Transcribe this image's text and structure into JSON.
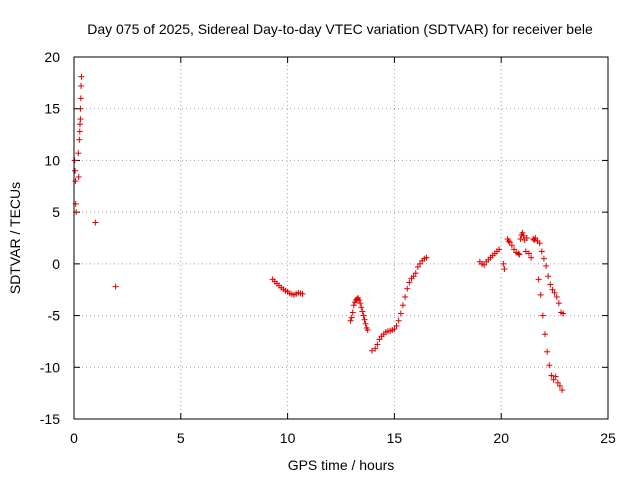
{
  "chart_data": {
    "type": "scatter",
    "title": "Day 075 of 2025, Sidereal Day-to-day VTEC variation (SDTVAR) for receiver bele",
    "xlabel": "GPS time / hours",
    "ylabel": "SDTVAR / TECUs",
    "xlim": [
      0,
      25
    ],
    "ylim": [
      -15,
      20
    ],
    "xticks": [
      0,
      5,
      10,
      15,
      20,
      25
    ],
    "yticks": [
      -15,
      -10,
      -5,
      0,
      5,
      10,
      15,
      20
    ],
    "xtick_labels": [
      "0",
      "5",
      "10",
      "15",
      "20",
      "25"
    ],
    "ytick_labels": [
      "-15",
      "-10",
      "-5",
      "0",
      "5",
      "10",
      "15",
      "20"
    ],
    "grid": true,
    "marker": "plus",
    "marker_color": "#e00000",
    "series": [
      {
        "name": "SDTVAR",
        "points": [
          [
            0.03,
            10.0
          ],
          [
            0.05,
            9.0
          ],
          [
            0.07,
            8.0
          ],
          [
            0.08,
            5.8
          ],
          [
            0.1,
            5.0
          ],
          [
            0.2,
            10.7
          ],
          [
            0.22,
            8.4
          ],
          [
            0.25,
            12.0
          ],
          [
            0.27,
            12.8
          ],
          [
            0.28,
            13.5
          ],
          [
            0.3,
            14.0
          ],
          [
            0.3,
            15.0
          ],
          [
            0.32,
            16.0
          ],
          [
            0.33,
            17.2
          ],
          [
            0.35,
            18.1
          ],
          [
            1.0,
            4.0
          ],
          [
            1.95,
            -2.2
          ],
          [
            9.3,
            -1.5
          ],
          [
            9.4,
            -1.7
          ],
          [
            9.5,
            -1.9
          ],
          [
            9.6,
            -2.1
          ],
          [
            9.7,
            -2.3
          ],
          [
            9.8,
            -2.45
          ],
          [
            9.9,
            -2.6
          ],
          [
            10.0,
            -2.7
          ],
          [
            10.1,
            -2.85
          ],
          [
            10.2,
            -2.95
          ],
          [
            10.3,
            -3.0
          ],
          [
            10.4,
            -2.9
          ],
          [
            10.5,
            -2.8
          ],
          [
            10.6,
            -2.85
          ],
          [
            10.7,
            -2.9
          ],
          [
            12.95,
            -5.5
          ],
          [
            13.0,
            -5.2
          ],
          [
            13.05,
            -4.7
          ],
          [
            13.1,
            -4.0
          ],
          [
            13.15,
            -3.7
          ],
          [
            13.2,
            -3.5
          ],
          [
            13.25,
            -3.4
          ],
          [
            13.3,
            -3.3
          ],
          [
            13.35,
            -3.5
          ],
          [
            13.4,
            -3.8
          ],
          [
            13.45,
            -4.2
          ],
          [
            13.5,
            -4.6
          ],
          [
            13.55,
            -5.0
          ],
          [
            13.6,
            -5.4
          ],
          [
            13.65,
            -5.8
          ],
          [
            13.7,
            -6.2
          ],
          [
            13.75,
            -6.4
          ],
          [
            13.95,
            -8.4
          ],
          [
            14.1,
            -8.2
          ],
          [
            14.2,
            -7.8
          ],
          [
            14.3,
            -7.3
          ],
          [
            14.4,
            -7.0
          ],
          [
            14.5,
            -6.8
          ],
          [
            14.6,
            -6.6
          ],
          [
            14.7,
            -6.5
          ],
          [
            14.8,
            -6.5
          ],
          [
            14.9,
            -6.4
          ],
          [
            15.0,
            -6.3
          ],
          [
            15.1,
            -6.0
          ],
          [
            15.2,
            -5.5
          ],
          [
            15.3,
            -4.8
          ],
          [
            15.4,
            -4.0
          ],
          [
            15.5,
            -3.2
          ],
          [
            15.6,
            -2.4
          ],
          [
            15.7,
            -1.8
          ],
          [
            15.8,
            -1.4
          ],
          [
            15.9,
            -1.2
          ],
          [
            16.0,
            -0.9
          ],
          [
            16.1,
            -0.3
          ],
          [
            16.2,
            0.0
          ],
          [
            16.3,
            0.3
          ],
          [
            16.4,
            0.5
          ],
          [
            16.5,
            0.6
          ],
          [
            19.0,
            0.2
          ],
          [
            19.1,
            0.0
          ],
          [
            19.2,
            -0.1
          ],
          [
            19.3,
            0.2
          ],
          [
            19.4,
            0.4
          ],
          [
            19.5,
            0.6
          ],
          [
            19.6,
            0.8
          ],
          [
            19.7,
            1.0
          ],
          [
            19.8,
            1.2
          ],
          [
            19.9,
            1.4
          ],
          [
            20.1,
            0.0
          ],
          [
            20.15,
            -0.5
          ],
          [
            20.3,
            2.4
          ],
          [
            20.35,
            2.2
          ],
          [
            20.4,
            2.1
          ],
          [
            20.5,
            1.8
          ],
          [
            20.6,
            1.4
          ],
          [
            20.7,
            1.1
          ],
          [
            20.8,
            1.0
          ],
          [
            20.85,
            0.9
          ],
          [
            20.9,
            2.4
          ],
          [
            20.95,
            2.8
          ],
          [
            21.0,
            3.0
          ],
          [
            21.05,
            2.7
          ],
          [
            21.1,
            2.3
          ],
          [
            21.15,
            1.2
          ],
          [
            21.2,
            2.5
          ],
          [
            21.3,
            1.0
          ],
          [
            21.4,
            0.6
          ],
          [
            21.5,
            2.4
          ],
          [
            21.55,
            2.3
          ],
          [
            21.6,
            2.5
          ],
          [
            21.7,
            2.2
          ],
          [
            21.75,
            -1.5
          ],
          [
            21.8,
            2.0
          ],
          [
            21.85,
            -3.0
          ],
          [
            21.9,
            1.2
          ],
          [
            21.95,
            -5.0
          ],
          [
            22.0,
            0.5
          ],
          [
            22.05,
            -6.8
          ],
          [
            22.1,
            -0.2
          ],
          [
            22.15,
            -8.5
          ],
          [
            22.2,
            -1.2
          ],
          [
            22.25,
            -9.8
          ],
          [
            22.3,
            -2.0
          ],
          [
            22.35,
            -10.8
          ],
          [
            22.4,
            -2.5
          ],
          [
            22.45,
            -11.2
          ],
          [
            22.5,
            -2.8
          ],
          [
            22.55,
            -10.9
          ],
          [
            22.6,
            -3.2
          ],
          [
            22.65,
            -11.5
          ],
          [
            22.7,
            -3.8
          ],
          [
            22.75,
            -11.8
          ],
          [
            22.8,
            -4.7
          ],
          [
            22.85,
            -12.2
          ],
          [
            22.9,
            -4.8
          ]
        ]
      }
    ]
  }
}
